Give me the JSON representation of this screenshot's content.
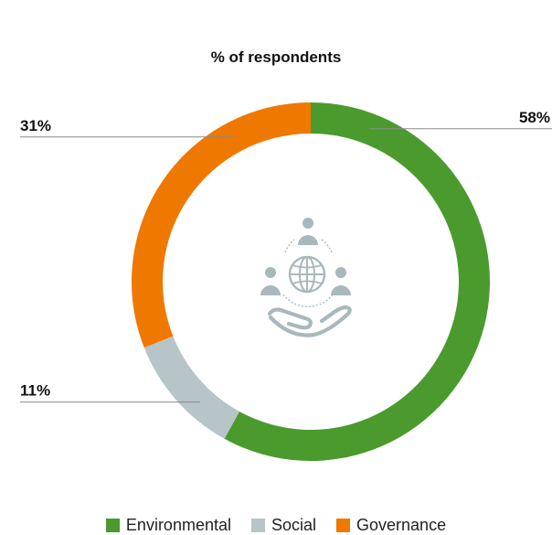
{
  "chart_data": {
    "type": "pie",
    "title": "% of respondents",
    "donut": true,
    "categories": [
      "Environmental",
      "Social",
      "Governance"
    ],
    "values": [
      58,
      11,
      31
    ],
    "data_labels": [
      "58%",
      "11%",
      "31%"
    ],
    "colors": [
      "#4a9a2d",
      "#b7c4c8",
      "#ef7800"
    ],
    "legend_position": "bottom",
    "center_icon": "globe-people-hand-icon"
  }
}
